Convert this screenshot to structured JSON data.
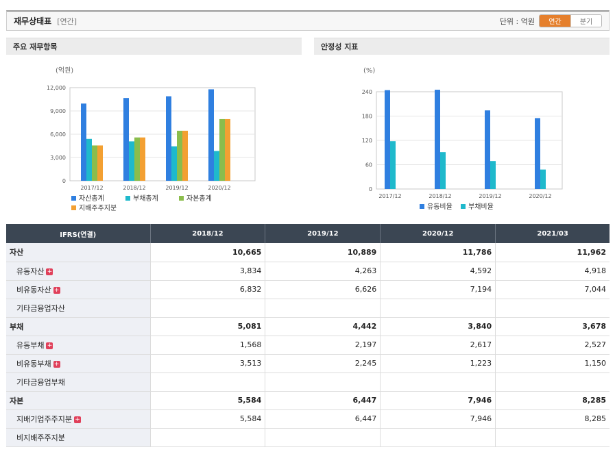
{
  "header": {
    "title": "재무상태표",
    "period_note": "[연간]",
    "unit_label": "단위 : 억원",
    "toggle": [
      {
        "label": "연간",
        "active": true
      },
      {
        "label": "분기",
        "active": false
      }
    ]
  },
  "panels": {
    "left_title": "주요 재무항목",
    "right_title": "안정성 지표"
  },
  "chart_data": [
    {
      "type": "bar",
      "ylabel": "(억원)",
      "ylim": [
        0,
        12000
      ],
      "yticks": [
        0,
        3000,
        6000,
        9000,
        12000
      ],
      "ytick_labels": [
        "0",
        "3,000",
        "6,000",
        "9,000",
        "12,000"
      ],
      "categories": [
        "2017/12",
        "2018/12",
        "2019/12",
        "2020/12"
      ],
      "series": [
        {
          "name": "자산총계",
          "color": "#2f7fe0",
          "values": [
            9950,
            10665,
            10889,
            11786
          ]
        },
        {
          "name": "부채총계",
          "color": "#1fb9cc",
          "values": [
            5400,
            5081,
            4442,
            3840
          ]
        },
        {
          "name": "자본총계",
          "color": "#8bbd4c",
          "values": [
            4550,
            5584,
            6447,
            7946
          ]
        },
        {
          "name": "지배주주지분",
          "color": "#f3a032",
          "values": [
            4550,
            5584,
            6447,
            7946
          ]
        }
      ],
      "grid": true,
      "legend": "bottom-left"
    },
    {
      "type": "bar",
      "ylabel": "(%)",
      "ylim": [
        0,
        240
      ],
      "yticks": [
        0,
        60,
        120,
        180,
        240
      ],
      "ytick_labels": [
        "0",
        "60",
        "120",
        "180",
        "240"
      ],
      "categories": [
        "2017/12",
        "2018/12",
        "2019/12",
        "2020/12"
      ],
      "series": [
        {
          "name": "유동비율",
          "color": "#2f7fe0",
          "values": [
            244,
            245,
            194,
            175
          ]
        },
        {
          "name": "부채비율",
          "color": "#1fb9cc",
          "values": [
            118,
            91,
            69,
            48
          ]
        }
      ],
      "grid": true,
      "legend": "bottom"
    }
  ],
  "table": {
    "columns": [
      "IFRS(연결)",
      "2018/12",
      "2019/12",
      "2020/12",
      "2021/03"
    ],
    "rows": [
      {
        "label": "자산",
        "major": true,
        "plus": false,
        "values": [
          "10,665",
          "10,889",
          "11,786",
          "11,962"
        ]
      },
      {
        "label": "유동자산",
        "major": false,
        "plus": true,
        "values": [
          "3,834",
          "4,263",
          "4,592",
          "4,918"
        ]
      },
      {
        "label": "비유동자산",
        "major": false,
        "plus": true,
        "values": [
          "6,832",
          "6,626",
          "7,194",
          "7,044"
        ]
      },
      {
        "label": "기타금융업자산",
        "major": false,
        "plus": false,
        "values": [
          "",
          "",
          "",
          ""
        ]
      },
      {
        "label": "부채",
        "major": true,
        "plus": false,
        "values": [
          "5,081",
          "4,442",
          "3,840",
          "3,678"
        ]
      },
      {
        "label": "유동부채",
        "major": false,
        "plus": true,
        "values": [
          "1,568",
          "2,197",
          "2,617",
          "2,527"
        ]
      },
      {
        "label": "비유동부채",
        "major": false,
        "plus": true,
        "values": [
          "3,513",
          "2,245",
          "1,223",
          "1,150"
        ]
      },
      {
        "label": "기타금융업부채",
        "major": false,
        "plus": false,
        "values": [
          "",
          "",
          "",
          ""
        ]
      },
      {
        "label": "자본",
        "major": true,
        "plus": false,
        "values": [
          "5,584",
          "6,447",
          "7,946",
          "8,285"
        ]
      },
      {
        "label": "지배기업주주지분",
        "major": false,
        "plus": true,
        "values": [
          "5,584",
          "6,447",
          "7,946",
          "8,285"
        ]
      },
      {
        "label": "비지배주주지분",
        "major": false,
        "plus": false,
        "values": [
          "",
          "",
          "",
          ""
        ]
      }
    ]
  }
}
